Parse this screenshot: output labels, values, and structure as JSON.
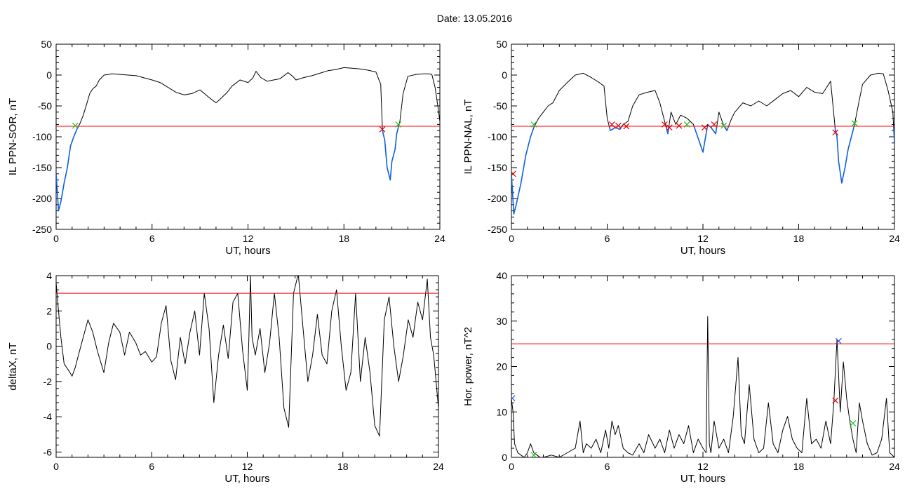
{
  "page": {
    "title": "Date:  13.05.2016"
  },
  "colors": {
    "trace": "#000000",
    "threshold": "#ff0000",
    "below_threshold": "#1060e0",
    "marker_red": "#e00000",
    "marker_green": "#20c020",
    "marker_blue": "#2050e0"
  },
  "chart_data": [
    {
      "type": "line",
      "id": "ppn-sor",
      "title": "",
      "xlabel": "UT, hours",
      "ylabel": "IL PPN-SOR, nT",
      "xlim": [
        0,
        24
      ],
      "ylim": [
        -250,
        50
      ],
      "xticks": [
        0,
        6,
        12,
        18,
        24
      ],
      "yticks": [
        -250,
        -200,
        -150,
        -100,
        -50,
        0,
        50
      ],
      "threshold": -83,
      "series": [
        {
          "x": [
            0,
            0.15,
            0.3,
            0.5,
            0.7,
            0.9,
            1.1,
            1.3,
            1.5,
            1.7,
            1.9,
            2.1,
            2.3,
            2.5,
            2.7,
            3.0,
            3.5,
            4.0,
            5.0,
            6.0,
            6.5,
            7.0,
            7.5,
            8.0,
            8.5,
            9.0,
            9.5,
            10.0,
            10.3,
            10.7,
            11.0,
            11.5,
            12.0,
            12.3,
            12.5,
            12.8,
            13.2,
            13.6,
            14.0,
            14.5,
            14.8,
            15.0,
            15.5,
            16.0,
            16.5,
            17.0,
            17.5,
            18.0,
            18.5,
            19.0,
            19.5,
            20.0,
            20.3,
            20.4,
            20.45,
            20.55,
            20.7,
            20.9,
            21.0,
            21.2,
            21.3,
            21.5,
            21.7,
            22.0,
            22.5,
            23.0,
            23.3,
            23.5,
            23.7,
            23.9,
            24.0
          ],
          "y": [
            -160,
            -220,
            -205,
            -175,
            -150,
            -115,
            -100,
            -88,
            -78,
            -65,
            -48,
            -30,
            -22,
            -18,
            -8,
            0,
            2,
            1,
            -1,
            -8,
            -12,
            -20,
            -28,
            -32,
            -30,
            -24,
            -35,
            -45,
            -38,
            -28,
            -18,
            -8,
            -12,
            -5,
            6,
            -4,
            -10,
            -8,
            -6,
            4,
            -2,
            -8,
            -4,
            -1,
            3,
            7,
            9,
            12,
            11,
            10,
            8,
            5,
            -15,
            -85,
            -95,
            -105,
            -150,
            -170,
            -140,
            -120,
            -95,
            -75,
            -30,
            -2,
            1,
            2,
            2,
            1,
            -20,
            -55,
            -75
          ]
        }
      ],
      "markers": [
        {
          "x": 1.2,
          "y": -82,
          "color": "green"
        },
        {
          "x": 20.4,
          "y": -88,
          "color": "red"
        },
        {
          "x": 21.4,
          "y": -80,
          "color": "green"
        }
      ]
    },
    {
      "type": "line",
      "id": "ppn-nal",
      "title": "",
      "xlabel": "UT, hours",
      "ylabel": "IL PPN-NAL, nT",
      "xlim": [
        0,
        24
      ],
      "ylim": [
        -250,
        50
      ],
      "xticks": [
        0,
        6,
        12,
        18,
        24
      ],
      "yticks": [
        -250,
        -200,
        -150,
        -100,
        -50,
        0,
        50
      ],
      "threshold": -83,
      "series": [
        {
          "x": [
            0,
            0.15,
            0.3,
            0.6,
            0.9,
            1.2,
            1.4,
            1.7,
            2.0,
            2.3,
            2.6,
            3.0,
            3.5,
            4.0,
            4.5,
            5.0,
            5.5,
            5.8,
            6.0,
            6.2,
            6.5,
            6.8,
            7.0,
            7.3,
            7.6,
            8.0,
            8.5,
            9.0,
            9.3,
            9.6,
            9.8,
            10.0,
            10.3,
            10.6,
            11.0,
            11.4,
            11.8,
            12.0,
            12.3,
            12.5,
            12.8,
            13.0,
            13.3,
            13.5,
            13.8,
            14.0,
            14.5,
            15.0,
            15.5,
            16.0,
            16.5,
            17.0,
            17.5,
            18.0,
            18.5,
            19.0,
            19.5,
            20.0,
            20.3,
            20.4,
            20.5,
            20.7,
            20.9,
            21.1,
            21.3,
            21.5,
            21.8,
            22.0,
            22.5,
            23.0,
            23.3,
            23.6,
            23.9,
            24.0
          ],
          "y": [
            -160,
            -225,
            -210,
            -175,
            -130,
            -100,
            -85,
            -70,
            -60,
            -50,
            -45,
            -25,
            -12,
            0,
            3,
            -4,
            -12,
            -18,
            -70,
            -90,
            -85,
            -88,
            -80,
            -75,
            -50,
            -32,
            -28,
            -25,
            -45,
            -75,
            -95,
            -60,
            -80,
            -65,
            -70,
            -80,
            -110,
            -125,
            -80,
            -85,
            -95,
            -60,
            -82,
            -90,
            -70,
            -60,
            -45,
            -50,
            -42,
            -50,
            -40,
            -30,
            -25,
            -35,
            -20,
            -28,
            -30,
            -10,
            -90,
            -100,
            -140,
            -175,
            -150,
            -120,
            -100,
            -80,
            -40,
            -15,
            0,
            3,
            2,
            -25,
            -60,
            -110
          ]
        }
      ],
      "markers": [
        {
          "x": 0.1,
          "y": -160,
          "color": "red"
        },
        {
          "x": 1.4,
          "y": -80,
          "color": "green"
        },
        {
          "x": 6.3,
          "y": -80,
          "color": "red"
        },
        {
          "x": 6.7,
          "y": -82,
          "color": "red"
        },
        {
          "x": 7.2,
          "y": -83,
          "color": "red"
        },
        {
          "x": 9.6,
          "y": -80,
          "color": "red"
        },
        {
          "x": 9.9,
          "y": -85,
          "color": "red"
        },
        {
          "x": 10.5,
          "y": -82,
          "color": "red"
        },
        {
          "x": 11.0,
          "y": -80,
          "color": "green"
        },
        {
          "x": 12.1,
          "y": -85,
          "color": "red"
        },
        {
          "x": 12.7,
          "y": -80,
          "color": "red"
        },
        {
          "x": 13.3,
          "y": -82,
          "color": "green"
        },
        {
          "x": 20.3,
          "y": -93,
          "color": "red"
        },
        {
          "x": 21.5,
          "y": -78,
          "color": "green"
        }
      ]
    },
    {
      "type": "line",
      "id": "deltax",
      "title": "",
      "xlabel": "UT, hours",
      "ylabel": "deltaX, nT",
      "xlim": [
        0,
        24
      ],
      "ylim": [
        -6.3,
        4
      ],
      "xticks": [
        0,
        6,
        12,
        18,
        24
      ],
      "yticks": [
        -6,
        -4,
        -2,
        0,
        2,
        4
      ],
      "threshold": 3,
      "series": [
        {
          "x": [
            0,
            0.1,
            0.3,
            0.5,
            0.8,
            1.0,
            1.2,
            1.4,
            1.7,
            2.0,
            2.3,
            2.6,
            3.0,
            3.3,
            3.6,
            4.0,
            4.3,
            4.6,
            5.0,
            5.3,
            5.6,
            6.0,
            6.3,
            6.6,
            6.9,
            7.2,
            7.5,
            7.8,
            8.1,
            8.4,
            8.7,
            9.0,
            9.3,
            9.6,
            9.9,
            10.2,
            10.5,
            10.8,
            11.1,
            11.4,
            11.7,
            12.0,
            12.1,
            12.2,
            12.3,
            12.5,
            12.8,
            13.1,
            13.4,
            13.7,
            14.0,
            14.3,
            14.6,
            14.9,
            15.2,
            15.5,
            15.8,
            16.1,
            16.4,
            16.7,
            17.0,
            17.3,
            17.6,
            17.9,
            18.2,
            18.5,
            18.8,
            19.1,
            19.4,
            19.7,
            20.0,
            20.3,
            20.6,
            20.9,
            21.2,
            21.5,
            21.8,
            22.1,
            22.4,
            22.7,
            23.0,
            23.3,
            23.5,
            23.7,
            24.0
          ],
          "y": [
            3.6,
            2.5,
            0.5,
            -1.0,
            -1.4,
            -1.7,
            -1.2,
            -0.5,
            0.5,
            1.5,
            0.8,
            -0.3,
            -1.5,
            0.2,
            1.3,
            0.8,
            -0.5,
            0.8,
            0.2,
            -0.5,
            -0.3,
            -0.9,
            -0.6,
            1.3,
            2.3,
            -0.8,
            -1.9,
            0.5,
            -1.0,
            0.8,
            2.0,
            -0.5,
            3.0,
            1.0,
            -3.2,
            -0.5,
            1.2,
            -0.7,
            2.5,
            3.0,
            -0.2,
            -2.5,
            0.5,
            4.0,
            0.5,
            -0.5,
            1.0,
            -1.5,
            0.2,
            3.0,
            0.5,
            -3.5,
            -4.6,
            3.0,
            4.1,
            1.0,
            -2.0,
            -0.5,
            1.8,
            -0.5,
            -1.0,
            2.0,
            3.2,
            0.0,
            -2.5,
            -1.5,
            3.0,
            -2.0,
            0.5,
            -1.5,
            -4.5,
            -5.1,
            1.5,
            2.8,
            0.0,
            -2.0,
            -0.5,
            1.5,
            0.5,
            2.5,
            1.5,
            3.8,
            0.5,
            -0.5,
            -3.5
          ]
        }
      ],
      "markers": []
    },
    {
      "type": "line",
      "id": "hor-power",
      "title": "",
      "xlabel": "UT, hours",
      "ylabel": "Hor. power, nT^2",
      "xlim": [
        0,
        24
      ],
      "ylim": [
        0,
        40
      ],
      "xticks": [
        0,
        6,
        12,
        18,
        24
      ],
      "yticks": [
        0,
        10,
        20,
        30,
        40
      ],
      "threshold": 25,
      "series": [
        {
          "x": [
            0,
            0.1,
            0.2,
            0.4,
            0.6,
            0.8,
            1.0,
            1.2,
            1.4,
            1.6,
            1.8,
            2.0,
            2.5,
            3.0,
            3.5,
            4.0,
            4.3,
            4.5,
            4.7,
            5.0,
            5.3,
            5.6,
            5.9,
            6.1,
            6.3,
            6.5,
            6.7,
            7.0,
            7.3,
            7.6,
            8.0,
            8.3,
            8.6,
            9.0,
            9.3,
            9.6,
            9.9,
            10.2,
            10.5,
            10.8,
            11.1,
            11.4,
            11.7,
            12.0,
            12.2,
            12.3,
            12.4,
            12.5,
            12.7,
            13.0,
            13.3,
            13.6,
            13.9,
            14.2,
            14.4,
            14.6,
            14.9,
            15.2,
            15.5,
            15.8,
            16.1,
            16.4,
            16.7,
            17.0,
            17.3,
            17.6,
            17.9,
            18.2,
            18.5,
            18.8,
            19.1,
            19.4,
            19.7,
            20.0,
            20.2,
            20.4,
            20.6,
            20.8,
            21.0,
            21.2,
            21.4,
            21.6,
            21.8,
            22.0,
            22.3,
            22.6,
            22.9,
            23.2,
            23.5,
            23.7,
            24.0
          ],
          "y": [
            13,
            10,
            3,
            1,
            0.5,
            0,
            1,
            3,
            1,
            0.5,
            0,
            0,
            0.5,
            0,
            1,
            2,
            8,
            1,
            3,
            2,
            4,
            1,
            6,
            2,
            8,
            5,
            7,
            2,
            1,
            0.5,
            3,
            1,
            5,
            2,
            4,
            1,
            6,
            2,
            5,
            3,
            7,
            1,
            4,
            2,
            1,
            31,
            3,
            1,
            8,
            2,
            4,
            1,
            9,
            22,
            5,
            3,
            16,
            4,
            1,
            2,
            12,
            3,
            1,
            6,
            9,
            4,
            2,
            1,
            13,
            3,
            4,
            2,
            8,
            3,
            12,
            26,
            10,
            21,
            13,
            8,
            4,
            1,
            12,
            8,
            3,
            0.5,
            1,
            4,
            13,
            1,
            0
          ]
        }
      ],
      "markers": [
        {
          "x": 0.05,
          "y": 13,
          "color": "blue"
        },
        {
          "x": 1.4,
          "y": 0.5,
          "color": "green"
        },
        {
          "x": 20.3,
          "y": 12.5,
          "color": "red"
        },
        {
          "x": 20.5,
          "y": 25.6,
          "color": "blue"
        },
        {
          "x": 21.4,
          "y": 7.5,
          "color": "green"
        }
      ]
    }
  ]
}
